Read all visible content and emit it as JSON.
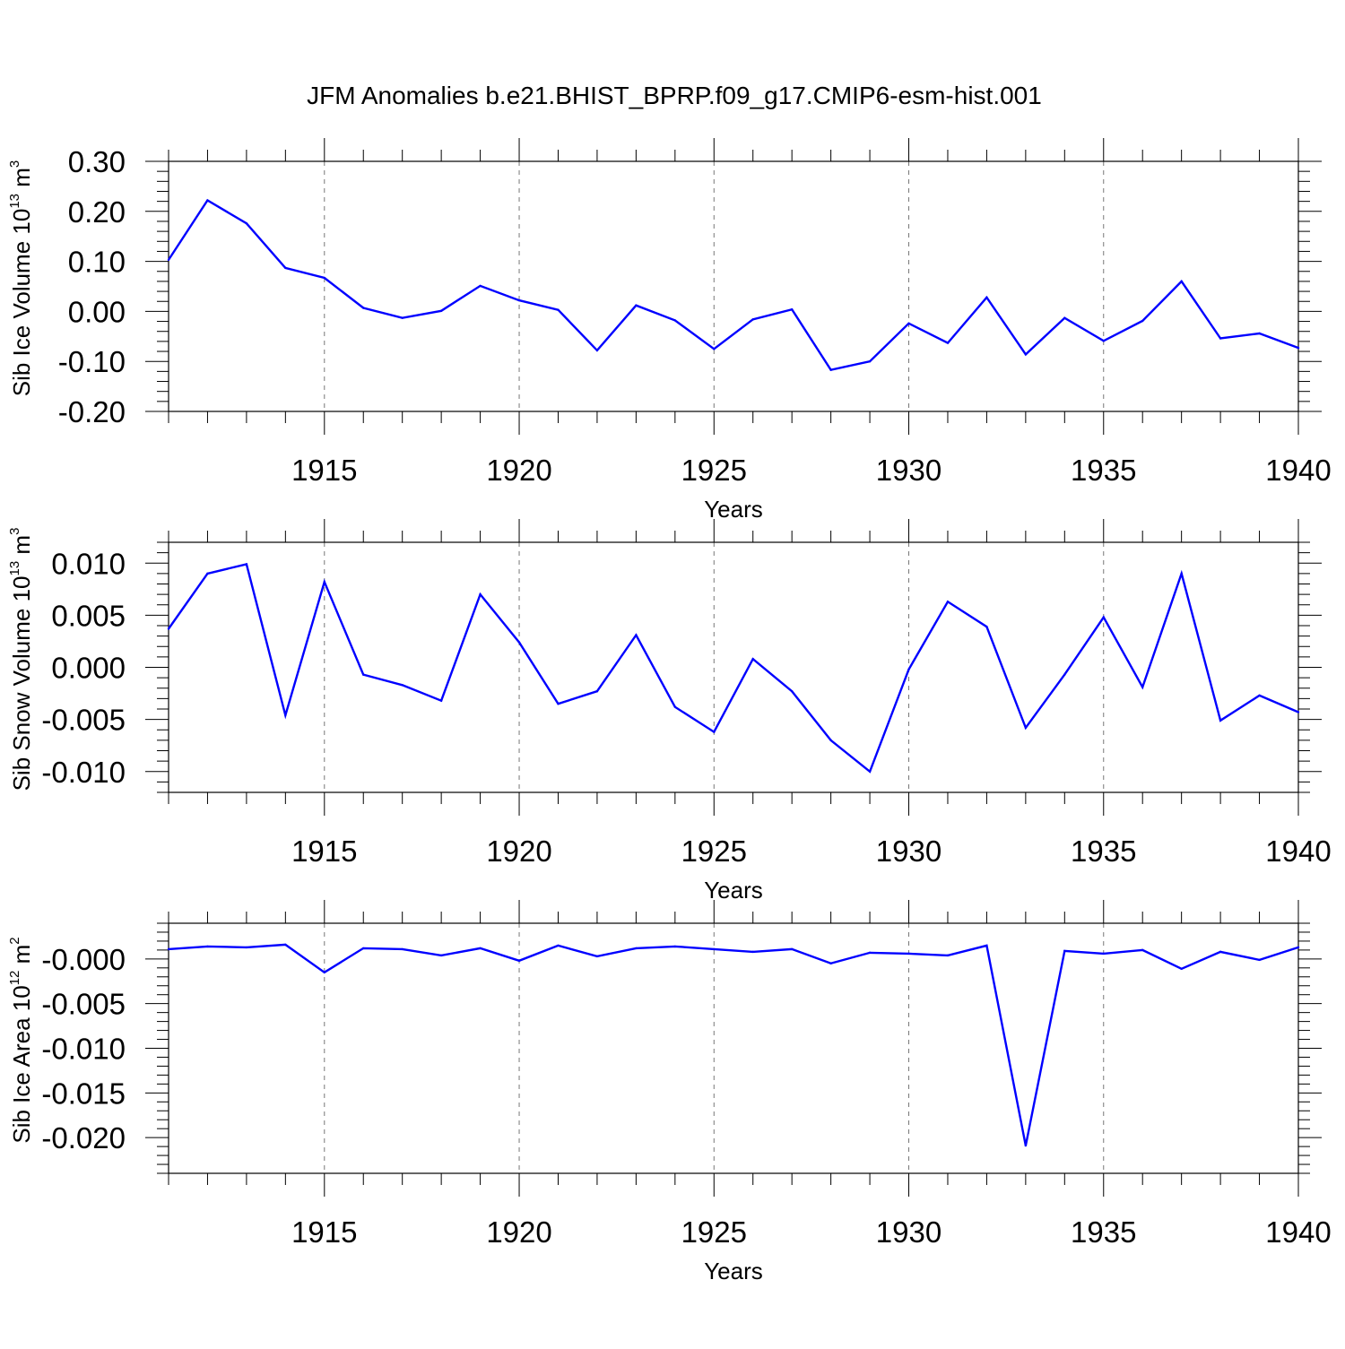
{
  "figure": {
    "title": "JFM Anomalies b.e21.BHIST_BPRP.f09_g17.CMIP6-esm-hist.001"
  },
  "chart_data": [
    {
      "type": "line",
      "xlabel": "Years",
      "ylabel": {
        "main": "Sib Ice Volume 10",
        "exp": "13",
        "unit": " m",
        "unit_exp": "3"
      },
      "xlim": [
        1911,
        1940
      ],
      "ylim": [
        -0.2,
        0.3
      ],
      "xticks": [
        1915,
        1920,
        1925,
        1930,
        1935,
        1940
      ],
      "xtick_labels": [
        "1915",
        "1920",
        "1925",
        "1930",
        "1935",
        "1940"
      ],
      "yticks": [
        -0.2,
        -0.1,
        0.0,
        0.1,
        0.2,
        0.3
      ],
      "ytick_labels": [
        "-0.20",
        "-0.10",
        "0.00",
        "0.10",
        "0.20",
        "0.30"
      ],
      "y_minor_step": 0.02,
      "grid": "vertical dashed at major x ticks",
      "line_color": "#0000ff",
      "x": [
        1911,
        1912,
        1913,
        1914,
        1915,
        1916,
        1917,
        1918,
        1919,
        1920,
        1921,
        1922,
        1923,
        1924,
        1925,
        1926,
        1927,
        1928,
        1929,
        1930,
        1931,
        1932,
        1933,
        1934,
        1935,
        1936,
        1937,
        1938,
        1939,
        1940
      ],
      "series": [
        {
          "values": [
            0.103,
            0.222,
            0.176,
            0.087,
            0.067,
            0.007,
            -0.013,
            0.001,
            0.051,
            0.022,
            0.003,
            -0.078,
            0.012,
            -0.018,
            -0.075,
            -0.016,
            0.004,
            -0.117,
            -0.1,
            -0.024,
            -0.063,
            0.028,
            -0.086,
            -0.013,
            -0.059,
            -0.019,
            0.06,
            -0.054,
            -0.044,
            -0.073
          ]
        }
      ]
    },
    {
      "type": "line",
      "xlabel": "Years",
      "ylabel": {
        "main": "Sib Snow Volume 10",
        "exp": "13",
        "unit": " m",
        "unit_exp": "3"
      },
      "xlim": [
        1911,
        1940
      ],
      "ylim": [
        -0.012,
        0.012
      ],
      "xticks": [
        1915,
        1920,
        1925,
        1930,
        1935,
        1940
      ],
      "xtick_labels": [
        "1915",
        "1920",
        "1925",
        "1930",
        "1935",
        "1940"
      ],
      "yticks": [
        -0.01,
        -0.005,
        0.0,
        0.005,
        0.01
      ],
      "ytick_labels": [
        "-0.010",
        "-0.005",
        "0.000",
        "0.005",
        "0.010"
      ],
      "y_minor_step": 0.001,
      "grid": "vertical dashed at major x ticks",
      "line_color": "#0000ff",
      "x": [
        1911,
        1912,
        1913,
        1914,
        1915,
        1916,
        1917,
        1918,
        1919,
        1920,
        1921,
        1922,
        1923,
        1924,
        1925,
        1926,
        1927,
        1928,
        1929,
        1930,
        1931,
        1932,
        1933,
        1934,
        1935,
        1936,
        1937,
        1938,
        1939,
        1940
      ],
      "series": [
        {
          "values": [
            0.0037,
            0.009,
            0.0099,
            -0.0046,
            0.0082,
            -0.0007,
            -0.0017,
            -0.0032,
            0.007,
            0.0024,
            -0.0035,
            -0.0023,
            0.0031,
            -0.0038,
            -0.0062,
            0.0008,
            -0.0023,
            -0.007,
            -0.01,
            -0.0002,
            0.0063,
            0.0039,
            -0.0058,
            -0.0007,
            0.0048,
            -0.0019,
            0.009,
            -0.0051,
            -0.0027,
            -0.0043
          ]
        }
      ]
    },
    {
      "type": "line",
      "xlabel": "Years",
      "ylabel": {
        "main": "Sib Ice Area 10",
        "exp": "12",
        "unit": " m",
        "unit_exp": "2"
      },
      "xlim": [
        1911,
        1940
      ],
      "ylim": [
        -0.024,
        0.004
      ],
      "xticks": [
        1915,
        1920,
        1925,
        1930,
        1935,
        1940
      ],
      "xtick_labels": [
        "1915",
        "1920",
        "1925",
        "1930",
        "1935",
        "1940"
      ],
      "yticks": [
        -0.02,
        -0.015,
        -0.01,
        -0.005,
        0.0
      ],
      "ytick_labels": [
        "-0.020",
        "-0.015",
        "-0.010",
        "-0.005",
        "-0.000"
      ],
      "y_minor_step": 0.001,
      "grid": "vertical dashed at major x ticks",
      "line_color": "#0000ff",
      "x": [
        1911,
        1912,
        1913,
        1914,
        1915,
        1916,
        1917,
        1918,
        1919,
        1920,
        1921,
        1922,
        1923,
        1924,
        1925,
        1926,
        1927,
        1928,
        1929,
        1930,
        1931,
        1932,
        1933,
        1934,
        1935,
        1936,
        1937,
        1938,
        1939,
        1940
      ],
      "series": [
        {
          "values": [
            0.0011,
            0.0014,
            0.0013,
            0.0016,
            -0.0015,
            0.0012,
            0.0011,
            0.0004,
            0.0012,
            -0.0002,
            0.0015,
            0.0003,
            0.0012,
            0.0014,
            0.0011,
            0.0008,
            0.0011,
            -0.0005,
            0.0007,
            0.0006,
            0.0004,
            0.0015,
            -0.0209,
            0.0009,
            0.0006,
            0.001,
            -0.0011,
            0.0008,
            -0.0001,
            0.0013
          ]
        }
      ]
    }
  ]
}
